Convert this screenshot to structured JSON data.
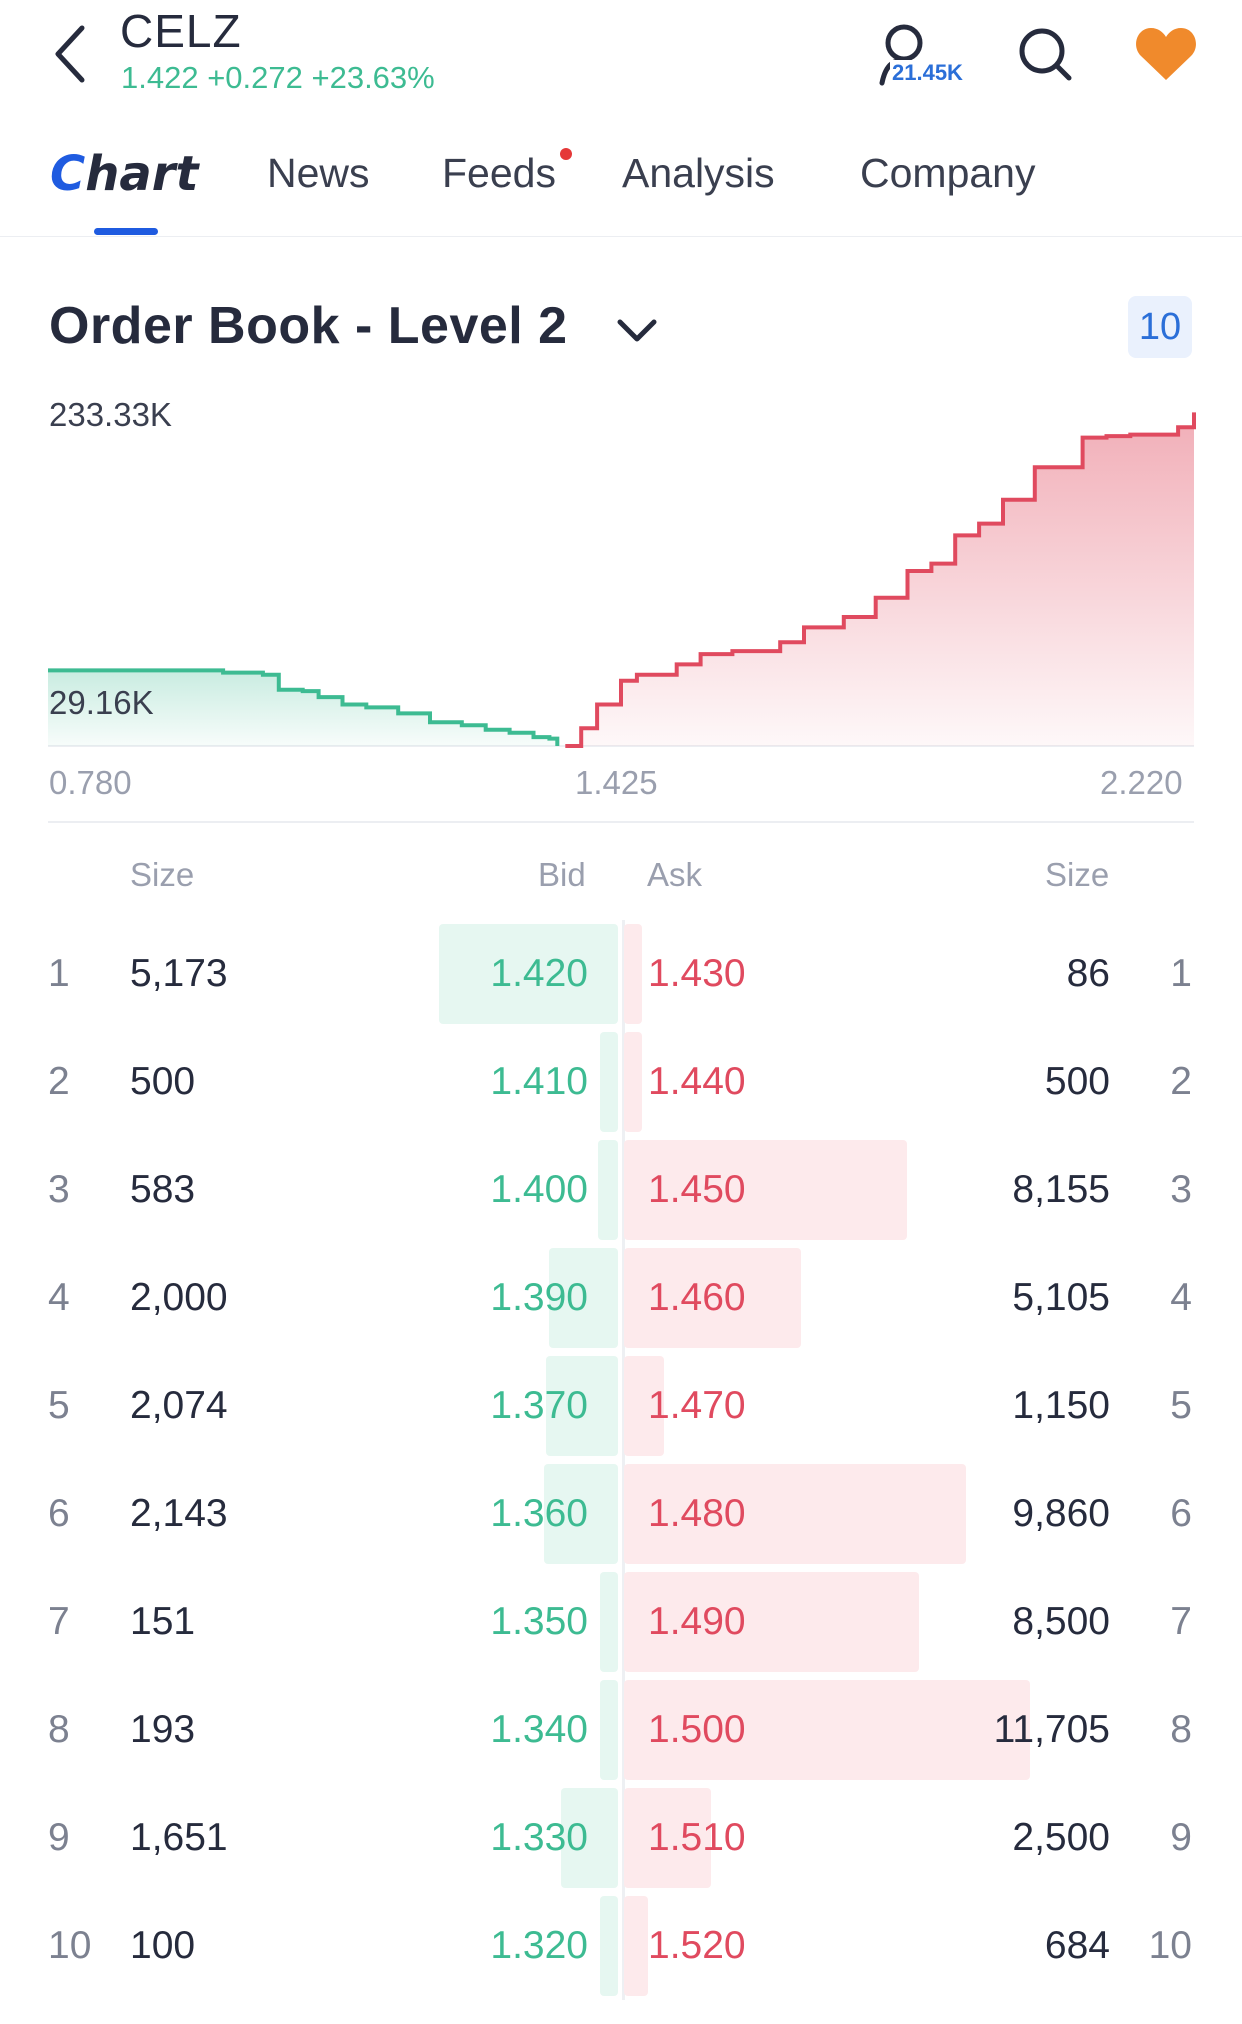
{
  "header": {
    "ticker": "CELZ",
    "quote": "1.422 +0.272 +23.63%",
    "follow_count": "21.45K"
  },
  "tabs": [
    {
      "label": "Chart",
      "active": true
    },
    {
      "label": "News"
    },
    {
      "label": "Feeds",
      "has_dot": true
    },
    {
      "label": "Analysis"
    },
    {
      "label": "Company"
    }
  ],
  "order_book": {
    "title": "Order Book - Level 2",
    "depth": "10",
    "columns": {
      "size_left": "Size",
      "bid": "Bid",
      "ask": "Ask",
      "size_right": "Size"
    },
    "rows": [
      {
        "rank": "1",
        "bid_size": "5,173",
        "bid": "1.420",
        "ask": "1.430",
        "ask_size": "86",
        "bid_vol": 5173,
        "ask_vol": 86
      },
      {
        "rank": "2",
        "bid_size": "500",
        "bid": "1.410",
        "ask": "1.440",
        "ask_size": "500",
        "bid_vol": 500,
        "ask_vol": 500
      },
      {
        "rank": "3",
        "bid_size": "583",
        "bid": "1.400",
        "ask": "1.450",
        "ask_size": "8,155",
        "bid_vol": 583,
        "ask_vol": 8155
      },
      {
        "rank": "4",
        "bid_size": "2,000",
        "bid": "1.390",
        "ask": "1.460",
        "ask_size": "5,105",
        "bid_vol": 2000,
        "ask_vol": 5105
      },
      {
        "rank": "5",
        "bid_size": "2,074",
        "bid": "1.370",
        "ask": "1.470",
        "ask_size": "1,150",
        "bid_vol": 2074,
        "ask_vol": 1150
      },
      {
        "rank": "6",
        "bid_size": "2,143",
        "bid": "1.360",
        "ask": "1.480",
        "ask_size": "9,860",
        "bid_vol": 2143,
        "ask_vol": 9860
      },
      {
        "rank": "7",
        "bid_size": "151",
        "bid": "1.350",
        "ask": "1.490",
        "ask_size": "8,500",
        "bid_vol": 151,
        "ask_vol": 8500
      },
      {
        "rank": "8",
        "bid_size": "193",
        "bid": "1.340",
        "ask": "1.500",
        "ask_size": "11,705",
        "bid_vol": 193,
        "ask_vol": 11705
      },
      {
        "rank": "9",
        "bid_size": "1,651",
        "bid": "1.330",
        "ask": "1.510",
        "ask_size": "2,500",
        "bid_vol": 1651,
        "ask_vol": 2500
      },
      {
        "rank": "10",
        "bid_size": "100",
        "bid": "1.320",
        "ask": "1.520",
        "ask_size": "684",
        "bid_vol": 100,
        "ask_vol": 684
      }
    ]
  },
  "chart_data": {
    "type": "area",
    "y_max_label": "233.33K",
    "bid_level_label": "29.16K",
    "x_ticks": [
      "0.780",
      "1.425",
      "2.220"
    ],
    "xlim": [
      0.78,
      2.22
    ],
    "ylim": [
      0,
      233330
    ],
    "colors": {
      "bid": "#3dbb92",
      "ask": "#e04a5f"
    },
    "series": [
      {
        "side": "bid",
        "x": [
          0.78,
          0.9,
          1.0,
          1.05,
          1.07,
          1.1,
          1.12,
          1.15,
          1.18,
          1.22,
          1.26,
          1.3,
          1.33,
          1.36,
          1.39,
          1.41,
          1.42
        ],
        "y": [
          51000,
          51000,
          49500,
          48000,
          38000,
          37000,
          33000,
          28000,
          26000,
          22000,
          16000,
          14000,
          11000,
          9000,
          6000,
          5000,
          0
        ]
      },
      {
        "side": "ask",
        "x": [
          1.43,
          1.45,
          1.47,
          1.5,
          1.52,
          1.57,
          1.6,
          1.64,
          1.7,
          1.73,
          1.78,
          1.82,
          1.86,
          1.89,
          1.92,
          1.95,
          1.98,
          2.02,
          2.08,
          2.11,
          2.14,
          2.2,
          2.22
        ],
        "y": [
          0,
          12000,
          28000,
          44000,
          48000,
          55000,
          62000,
          64000,
          70000,
          80000,
          87000,
          100000,
          118000,
          123000,
          142000,
          150000,
          166000,
          188000,
          208000,
          209000,
          210000,
          215000,
          225000
        ]
      }
    ]
  }
}
